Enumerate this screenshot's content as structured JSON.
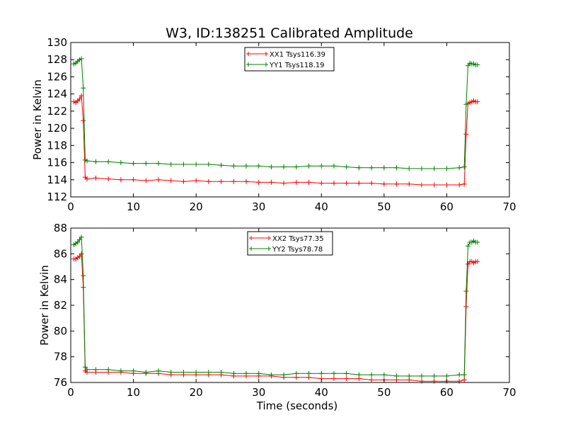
{
  "figure_title": "W3, ID:138251 Calibrated Amplitude",
  "chart_data": [
    {
      "type": "line",
      "title": "W3, ID:138251 Calibrated Amplitude",
      "xlabel": "",
      "ylabel": "Power in Kelvin",
      "xlim": [
        0,
        70
      ],
      "ylim": [
        112,
        130
      ],
      "xticks": [
        "0",
        "10",
        "20",
        "30",
        "40",
        "50",
        "60",
        "70"
      ],
      "yticks": [
        "112",
        "114",
        "116",
        "118",
        "120",
        "122",
        "124",
        "126",
        "128",
        "130"
      ],
      "grid": false,
      "legend_position": "top-center",
      "series": [
        {
          "name": "XX1 Tsys116.39",
          "color": "#ff0000",
          "points": [
            [
              0.5,
              123.1
            ],
            [
              0.8,
              123.0
            ],
            [
              1.1,
              123.2
            ],
            [
              1.4,
              123.4
            ],
            [
              1.7,
              123.8
            ],
            [
              2.0,
              120.9
            ],
            [
              2.3,
              114.3
            ],
            [
              2.6,
              114.1
            ],
            [
              4.0,
              114.2
            ],
            [
              6.0,
              114.1
            ],
            [
              8.0,
              114.0
            ],
            [
              10.0,
              114.0
            ],
            [
              12.0,
              113.9
            ],
            [
              14.0,
              114.0
            ],
            [
              16.0,
              113.9
            ],
            [
              18.0,
              113.8
            ],
            [
              20.0,
              113.9
            ],
            [
              22.0,
              113.8
            ],
            [
              24.0,
              113.8
            ],
            [
              26.0,
              113.8
            ],
            [
              28.0,
              113.8
            ],
            [
              30.0,
              113.7
            ],
            [
              32.0,
              113.7
            ],
            [
              34.0,
              113.6
            ],
            [
              36.0,
              113.7
            ],
            [
              38.0,
              113.7
            ],
            [
              40.0,
              113.6
            ],
            [
              42.0,
              113.6
            ],
            [
              44.0,
              113.6
            ],
            [
              46.0,
              113.6
            ],
            [
              48.0,
              113.6
            ],
            [
              50.0,
              113.5
            ],
            [
              52.0,
              113.5
            ],
            [
              54.0,
              113.5
            ],
            [
              56.0,
              113.4
            ],
            [
              58.0,
              113.4
            ],
            [
              60.0,
              113.4
            ],
            [
              62.0,
              113.4
            ],
            [
              62.8,
              113.5
            ],
            [
              63.1,
              119.3
            ],
            [
              63.4,
              122.9
            ],
            [
              63.7,
              123.0
            ],
            [
              64.0,
              123.1
            ],
            [
              64.3,
              123.2
            ],
            [
              64.6,
              123.1
            ],
            [
              64.9,
              123.1
            ]
          ]
        },
        {
          "name": "YY1 Tsys118.19",
          "color": "#008000",
          "points": [
            [
              0.5,
              127.5
            ],
            [
              0.8,
              127.6
            ],
            [
              1.1,
              127.8
            ],
            [
              1.4,
              128.0
            ],
            [
              1.7,
              128.1
            ],
            [
              2.0,
              124.7
            ],
            [
              2.3,
              116.3
            ],
            [
              2.6,
              116.2
            ],
            [
              4.0,
              116.1
            ],
            [
              6.0,
              116.1
            ],
            [
              8.0,
              116.0
            ],
            [
              10.0,
              115.9
            ],
            [
              12.0,
              115.9
            ],
            [
              14.0,
              115.9
            ],
            [
              16.0,
              115.8
            ],
            [
              18.0,
              115.8
            ],
            [
              20.0,
              115.8
            ],
            [
              22.0,
              115.8
            ],
            [
              24.0,
              115.7
            ],
            [
              26.0,
              115.6
            ],
            [
              28.0,
              115.6
            ],
            [
              30.0,
              115.6
            ],
            [
              32.0,
              115.5
            ],
            [
              34.0,
              115.5
            ],
            [
              36.0,
              115.5
            ],
            [
              38.0,
              115.6
            ],
            [
              40.0,
              115.6
            ],
            [
              42.0,
              115.6
            ],
            [
              44.0,
              115.5
            ],
            [
              46.0,
              115.4
            ],
            [
              48.0,
              115.4
            ],
            [
              50.0,
              115.4
            ],
            [
              52.0,
              115.4
            ],
            [
              54.0,
              115.3
            ],
            [
              56.0,
              115.3
            ],
            [
              58.0,
              115.3
            ],
            [
              60.0,
              115.3
            ],
            [
              62.0,
              115.4
            ],
            [
              62.8,
              115.5
            ],
            [
              63.1,
              122.8
            ],
            [
              63.4,
              127.3
            ],
            [
              63.7,
              127.6
            ],
            [
              64.0,
              127.5
            ],
            [
              64.3,
              127.5
            ],
            [
              64.6,
              127.4
            ],
            [
              64.9,
              127.4
            ]
          ]
        }
      ]
    },
    {
      "type": "line",
      "title": "",
      "xlabel": "Time (seconds)",
      "ylabel": "Power in Kelvin",
      "xlim": [
        0,
        70
      ],
      "ylim": [
        76,
        88
      ],
      "xticks": [
        "0",
        "10",
        "20",
        "30",
        "40",
        "50",
        "60",
        "70"
      ],
      "yticks": [
        "76",
        "78",
        "80",
        "82",
        "84",
        "86",
        "88"
      ],
      "grid": false,
      "legend_position": "top-center",
      "series": [
        {
          "name": "XX2 Tsys77.35",
          "color": "#ff0000",
          "points": [
            [
              0.5,
              85.6
            ],
            [
              0.8,
              85.6
            ],
            [
              1.1,
              85.7
            ],
            [
              1.4,
              85.8
            ],
            [
              1.7,
              86.0
            ],
            [
              2.0,
              83.4
            ],
            [
              2.3,
              76.9
            ],
            [
              2.6,
              76.8
            ],
            [
              4.0,
              76.8
            ],
            [
              6.0,
              76.8
            ],
            [
              8.0,
              76.8
            ],
            [
              10.0,
              76.7
            ],
            [
              12.0,
              76.7
            ],
            [
              14.0,
              76.7
            ],
            [
              16.0,
              76.6
            ],
            [
              18.0,
              76.6
            ],
            [
              20.0,
              76.6
            ],
            [
              22.0,
              76.6
            ],
            [
              24.0,
              76.6
            ],
            [
              26.0,
              76.5
            ],
            [
              28.0,
              76.5
            ],
            [
              30.0,
              76.5
            ],
            [
              32.0,
              76.5
            ],
            [
              34.0,
              76.4
            ],
            [
              36.0,
              76.4
            ],
            [
              38.0,
              76.4
            ],
            [
              40.0,
              76.3
            ],
            [
              42.0,
              76.3
            ],
            [
              44.0,
              76.3
            ],
            [
              46.0,
              76.3
            ],
            [
              48.0,
              76.2
            ],
            [
              50.0,
              76.2
            ],
            [
              52.0,
              76.2
            ],
            [
              54.0,
              76.2
            ],
            [
              56.0,
              76.1
            ],
            [
              58.0,
              76.1
            ],
            [
              60.0,
              76.1
            ],
            [
              62.0,
              76.1
            ],
            [
              62.8,
              76.2
            ],
            [
              63.1,
              81.9
            ],
            [
              63.4,
              85.2
            ],
            [
              63.7,
              85.4
            ],
            [
              64.0,
              85.4
            ],
            [
              64.3,
              85.3
            ],
            [
              64.6,
              85.4
            ],
            [
              64.9,
              85.4
            ]
          ]
        },
        {
          "name": "YY2 Tsys78.78",
          "color": "#008000",
          "points": [
            [
              0.5,
              86.7
            ],
            [
              0.8,
              86.8
            ],
            [
              1.1,
              86.9
            ],
            [
              1.4,
              87.1
            ],
            [
              1.7,
              87.3
            ],
            [
              2.0,
              84.3
            ],
            [
              2.3,
              77.2
            ],
            [
              2.6,
              77.0
            ],
            [
              4.0,
              77.0
            ],
            [
              6.0,
              77.0
            ],
            [
              8.0,
              76.9
            ],
            [
              10.0,
              76.9
            ],
            [
              12.0,
              76.8
            ],
            [
              14.0,
              76.9
            ],
            [
              16.0,
              76.8
            ],
            [
              18.0,
              76.8
            ],
            [
              20.0,
              76.8
            ],
            [
              22.0,
              76.8
            ],
            [
              24.0,
              76.8
            ],
            [
              26.0,
              76.7
            ],
            [
              28.0,
              76.7
            ],
            [
              30.0,
              76.7
            ],
            [
              32.0,
              76.6
            ],
            [
              34.0,
              76.6
            ],
            [
              36.0,
              76.7
            ],
            [
              38.0,
              76.7
            ],
            [
              40.0,
              76.7
            ],
            [
              42.0,
              76.7
            ],
            [
              44.0,
              76.7
            ],
            [
              46.0,
              76.6
            ],
            [
              48.0,
              76.6
            ],
            [
              50.0,
              76.6
            ],
            [
              52.0,
              76.5
            ],
            [
              54.0,
              76.5
            ],
            [
              56.0,
              76.5
            ],
            [
              58.0,
              76.5
            ],
            [
              60.0,
              76.5
            ],
            [
              62.0,
              76.6
            ],
            [
              62.8,
              76.6
            ],
            [
              63.1,
              83.1
            ],
            [
              63.4,
              86.6
            ],
            [
              63.7,
              86.9
            ],
            [
              64.0,
              86.9
            ],
            [
              64.3,
              87.0
            ],
            [
              64.6,
              86.9
            ],
            [
              64.9,
              86.9
            ]
          ]
        }
      ]
    }
  ]
}
